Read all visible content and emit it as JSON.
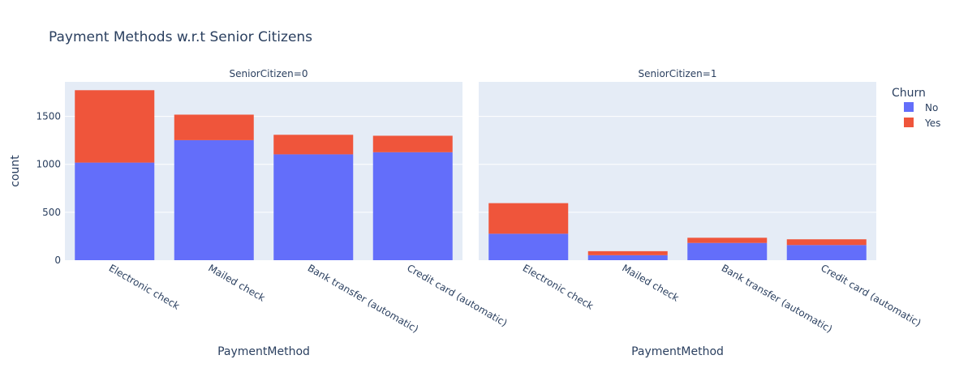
{
  "chart_data": {
    "type": "bar",
    "barmode": "stack",
    "title": "Payment Methods w.r.t Senior Citizens",
    "ylabel": "count",
    "xlabel": "PaymentMethod",
    "ylim": [
      0,
      1860
    ],
    "yticks": [
      0,
      500,
      1000,
      1500
    ],
    "grid": true,
    "legend_placement": "top-right",
    "legend": {
      "title": "Churn"
    },
    "colors": {
      "No": "#636efa",
      "Yes": "#ef553b",
      "plot_bg": "#e5ecf6",
      "text": "#2a3f5f"
    },
    "categories": [
      "Electronic check",
      "Mailed check",
      "Bank transfer (automatic)",
      "Credit card (automatic)"
    ],
    "panels": [
      {
        "label": "SeniorCitizen=0",
        "series": [
          {
            "name": "No",
            "values": [
              1018,
              1252,
              1104,
              1126
            ]
          },
          {
            "name": "Yes",
            "values": [
              755,
              266,
              204,
              172
            ]
          }
        ]
      },
      {
        "label": "SeniorCitizen=1",
        "series": [
          {
            "name": "No",
            "values": [
              276,
              52,
              180,
              158
            ]
          },
          {
            "name": "Yes",
            "values": [
              319,
              42,
              54,
              60
            ]
          }
        ]
      }
    ]
  }
}
